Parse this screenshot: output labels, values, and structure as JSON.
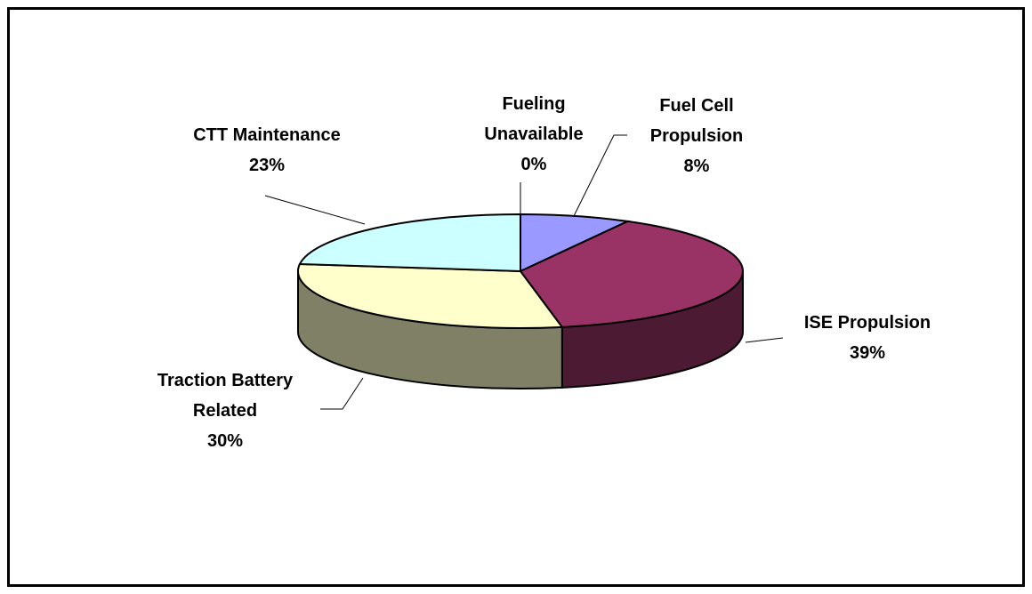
{
  "chart_data": {
    "type": "pie3d",
    "categories": [
      "Fueling Unavailable",
      "Fuel Cell Propulsion",
      "ISE Propulsion",
      "Traction Battery Related",
      "CTT Maintenance"
    ],
    "values": [
      0,
      8,
      39,
      30,
      23
    ],
    "value_labels": [
      "0%",
      "8%",
      "39%",
      "30%",
      "23%"
    ],
    "colors": [
      "#ff8080",
      "#9999ff",
      "#993366",
      "#ffffcc",
      "#ccffff"
    ]
  }
}
